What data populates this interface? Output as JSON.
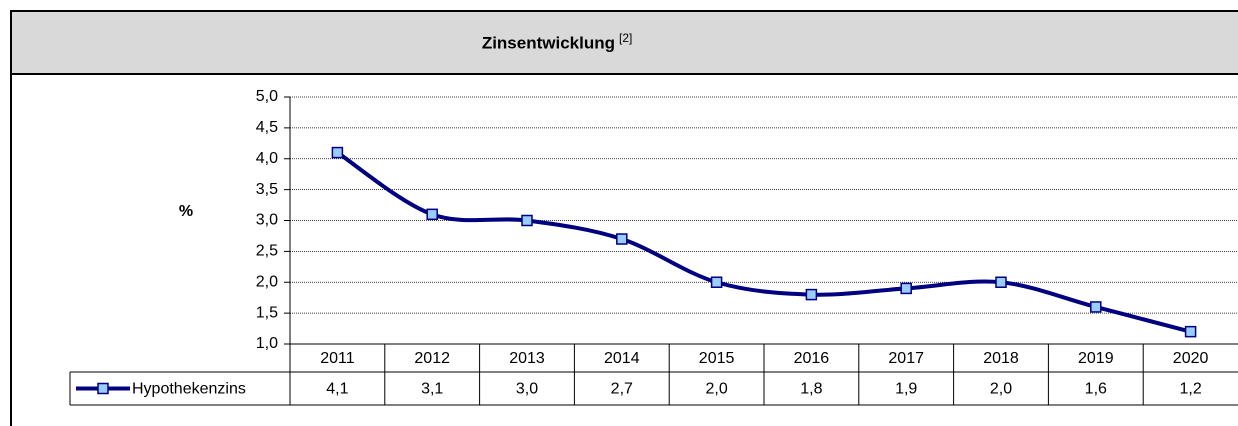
{
  "chart_data": {
    "type": "line",
    "title": "Zinsentwicklung",
    "title_note": "[2]",
    "y_label": "%",
    "categories": [
      "2011",
      "2012",
      "2013",
      "2014",
      "2015",
      "2016",
      "2017",
      "2018",
      "2019",
      "2020"
    ],
    "series": [
      {
        "name": "Hypothekenzins",
        "color": "#000080",
        "values": [
          4.1,
          3.1,
          3.0,
          2.7,
          2.0,
          1.8,
          1.9,
          2.0,
          1.6,
          1.2
        ],
        "value_labels": [
          "4,1",
          "3,1",
          "3,0",
          "2,7",
          "2,0",
          "1,8",
          "1,9",
          "2,0",
          "1,6",
          "1,2"
        ]
      }
    ],
    "ylim": [
      1,
      5
    ],
    "yticks": [
      {
        "value": 1,
        "label": "1,0"
      },
      {
        "value": 1.5,
        "label": "1,5"
      },
      {
        "value": 2,
        "label": "2,0"
      },
      {
        "value": 2.5,
        "label": "2,5"
      },
      {
        "value": 3,
        "label": "3,0"
      },
      {
        "value": 3.5,
        "label": "3,5"
      },
      {
        "value": 4,
        "label": "4,0"
      },
      {
        "value": 4.5,
        "label": "4,5"
      },
      {
        "value": 5,
        "label": "5,0"
      }
    ],
    "grid": true
  }
}
